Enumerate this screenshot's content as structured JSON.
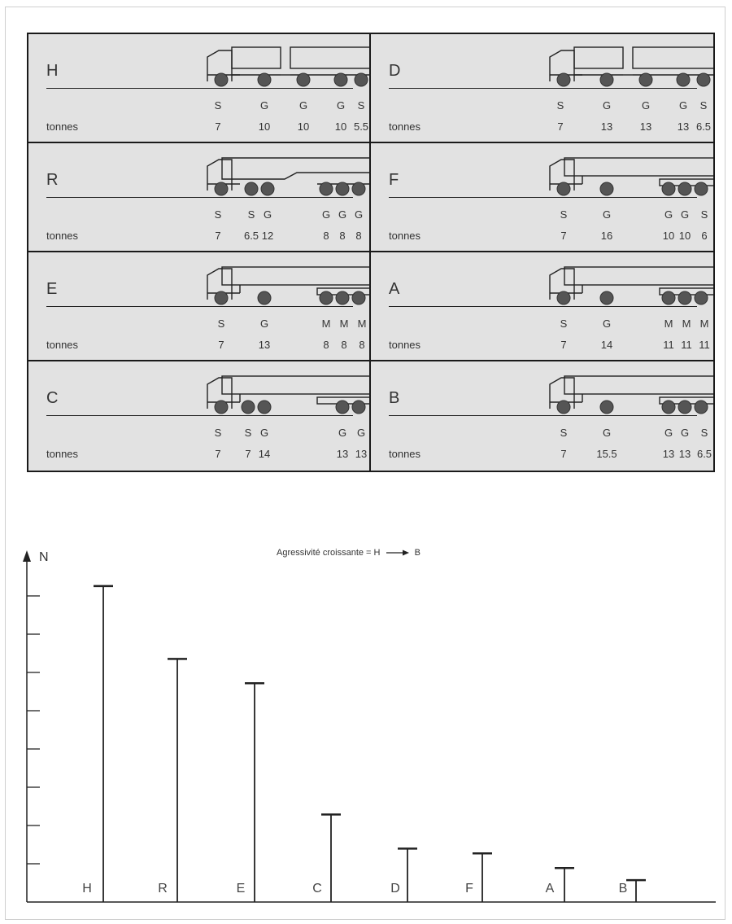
{
  "trucks": [
    {
      "id": "H",
      "letter": "H",
      "tonnes_label": "tonnes",
      "axles": [
        {
          "type": "S",
          "load": "7"
        },
        {
          "type": "G",
          "load": "10"
        },
        {
          "type": "G",
          "load": "10"
        },
        {
          "type": "G",
          "load": "10"
        },
        {
          "type": "S",
          "load": "5.5"
        }
      ]
    },
    {
      "id": "D",
      "letter": "D",
      "tonnes_label": "tonnes",
      "axles": [
        {
          "type": "S",
          "load": "7"
        },
        {
          "type": "G",
          "load": "13"
        },
        {
          "type": "G",
          "load": "13"
        },
        {
          "type": "G",
          "load": "13"
        },
        {
          "type": "S",
          "load": "6.5"
        }
      ]
    },
    {
      "id": "R",
      "letter": "R",
      "tonnes_label": "tonnes",
      "axles": [
        {
          "type": "S",
          "load": "7"
        },
        {
          "type": "S",
          "load": "6.5"
        },
        {
          "type": "G",
          "load": "12"
        },
        {
          "type": "G",
          "load": "8"
        },
        {
          "type": "G",
          "load": "8"
        },
        {
          "type": "G",
          "load": "8"
        }
      ]
    },
    {
      "id": "F",
      "letter": "F",
      "tonnes_label": "tonnes",
      "axles": [
        {
          "type": "S",
          "load": "7"
        },
        {
          "type": "G",
          "load": "16"
        },
        {
          "type": "G",
          "load": "10"
        },
        {
          "type": "G",
          "load": "10"
        },
        {
          "type": "S",
          "load": "6"
        }
      ]
    },
    {
      "id": "E",
      "letter": "E",
      "tonnes_label": "tonnes",
      "axles": [
        {
          "type": "S",
          "load": "7"
        },
        {
          "type": "G",
          "load": "13"
        },
        {
          "type": "M",
          "load": "8"
        },
        {
          "type": "M",
          "load": "8"
        },
        {
          "type": "M",
          "load": "8"
        }
      ]
    },
    {
      "id": "A",
      "letter": "A",
      "tonnes_label": "tonnes",
      "axles": [
        {
          "type": "S",
          "load": "7"
        },
        {
          "type": "G",
          "load": "14"
        },
        {
          "type": "M",
          "load": "11"
        },
        {
          "type": "M",
          "load": "11"
        },
        {
          "type": "M",
          "load": "11"
        }
      ]
    },
    {
      "id": "C",
      "letter": "C",
      "tonnes_label": "tonnes",
      "axles": [
        {
          "type": "S",
          "load": "7"
        },
        {
          "type": "S",
          "load": "7"
        },
        {
          "type": "G",
          "load": "14"
        },
        {
          "type": "G",
          "load": "13"
        },
        {
          "type": "G",
          "load": "13"
        }
      ]
    },
    {
      "id": "B",
      "letter": "B",
      "tonnes_label": "tonnes",
      "axles": [
        {
          "type": "S",
          "load": "7"
        },
        {
          "type": "G",
          "load": "15.5"
        },
        {
          "type": "G",
          "load": "13"
        },
        {
          "type": "G",
          "load": "13"
        },
        {
          "type": "S",
          "load": "6.5"
        }
      ]
    }
  ],
  "chart": {
    "title_text": "Agressivité croissante = H",
    "title_end": "B",
    "y_axis_label": "N"
  },
  "chart_data": {
    "type": "bar",
    "categories": [
      "H",
      "R",
      "E",
      "C",
      "D",
      "F",
      "A",
      "B"
    ],
    "values": [
      6.5,
      5.0,
      4.5,
      1.8,
      1.1,
      1.0,
      0.7,
      0.45
    ],
    "ylabel": "N",
    "ylim": [
      0,
      7
    ],
    "yticks": 7,
    "grid": false,
    "legend": "none"
  },
  "colors": {
    "background": "#e2e2e2",
    "ink": "#222222",
    "wheel": "#555555"
  }
}
